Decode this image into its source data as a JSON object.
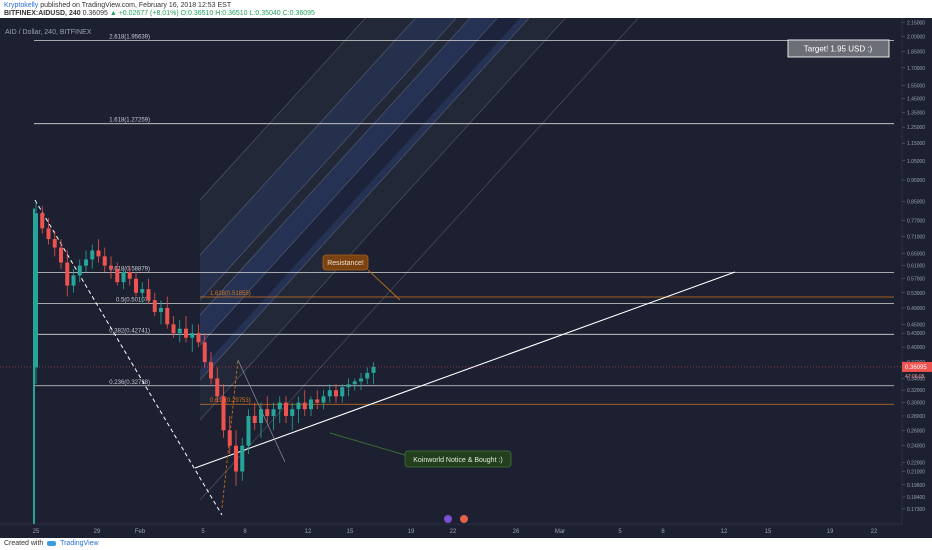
{
  "header": {
    "author": "Kryptokelly",
    "published": "published on TradingView.com, February 16, 2018 12:53 EST",
    "symbol": "BITFINEX:AIDUSD, 240",
    "last": "0.36095",
    "change": "▲ +0.02677 (+8.01%)",
    "o": "O:0.36510",
    "h": "H:0.36510",
    "l": "L:0.35040",
    "c": "C:0.36095"
  },
  "footer": {
    "created": "Created with",
    "brand": "TradingView"
  },
  "colors": {
    "background": "#1c2030",
    "up": "#26a69a",
    "down": "#ef5350",
    "fib_line": "#d8d8d8",
    "fib_orange": "#d2761c",
    "channel_blue": "#2c4f9c",
    "callout_orange": "#7a4211",
    "callout_green": "#233f1e"
  },
  "chart_data": {
    "type": "candlestick",
    "title": "AID / Dollar, 240, BITFINEX",
    "y_scale": "log",
    "ylim": [
      0.16,
      2.2
    ],
    "y_ticks": [
      "2.15000",
      "2.00000",
      "1.85000",
      "1.70000",
      "1.55000",
      "1.45000",
      "1.35000",
      "1.25000",
      "1.15000",
      "1.05000",
      "0.95000",
      "0.85000",
      "0.77000",
      "0.71000",
      "0.65000",
      "0.61000",
      "0.57000",
      "0.53000",
      "0.49000",
      "0.45000",
      "0.43000",
      "0.40000",
      "0.37000",
      "0.34000",
      "0.32000",
      "0.30000",
      "0.28000",
      "0.26000",
      "0.24000",
      "0.22000",
      "0.21000",
      "0.19600",
      "0.18400",
      "0.17300"
    ],
    "x_ticks": [
      "25",
      "29",
      "Feb",
      "5",
      "8",
      "12",
      "15",
      "19",
      "22",
      "26",
      "Mar",
      "5",
      "8",
      "12",
      "15",
      "19",
      "22"
    ],
    "last_price_label": "0.36095",
    "last_price": 0.36095,
    "time_label": "47:06:05",
    "fib_levels": [
      {
        "label": "2.618(1.95639)",
        "value": 1.95639
      },
      {
        "label": "1.618(1.27259)",
        "value": 1.27259
      },
      {
        "label": "0.618(0.58879)",
        "value": 0.58879
      },
      {
        "label": "0.5(0.50107)",
        "value": 0.50107
      },
      {
        "label": "0.382(0.42741)",
        "value": 0.42741
      },
      {
        "label": "0.236(0.32738)",
        "value": 0.32738
      }
    ],
    "fib_orange_levels": [
      {
        "label": "1.618(0.51855)",
        "value": 0.51855
      },
      {
        "label": "0.618(0.29753)",
        "value": 0.29753
      }
    ],
    "annotations": {
      "target": "Target! 1.95 USD :)",
      "resistance": "Resistance!",
      "notice": "Koinworld Notice & Bought :)"
    },
    "candles": [
      [
        0.36,
        0.85,
        0.33,
        0.8
      ],
      [
        0.8,
        0.83,
        0.72,
        0.74
      ],
      [
        0.74,
        0.78,
        0.68,
        0.7
      ],
      [
        0.7,
        0.73,
        0.64,
        0.67
      ],
      [
        0.67,
        0.7,
        0.6,
        0.62
      ],
      [
        0.62,
        0.66,
        0.52,
        0.55
      ],
      [
        0.55,
        0.6,
        0.53,
        0.58
      ],
      [
        0.58,
        0.63,
        0.56,
        0.61
      ],
      [
        0.61,
        0.66,
        0.59,
        0.63
      ],
      [
        0.63,
        0.68,
        0.6,
        0.66
      ],
      [
        0.66,
        0.7,
        0.62,
        0.64
      ],
      [
        0.64,
        0.67,
        0.59,
        0.61
      ],
      [
        0.61,
        0.64,
        0.57,
        0.6
      ],
      [
        0.6,
        0.62,
        0.55,
        0.56
      ],
      [
        0.56,
        0.6,
        0.54,
        0.59
      ],
      [
        0.59,
        0.61,
        0.55,
        0.57
      ],
      [
        0.57,
        0.59,
        0.52,
        0.53
      ],
      [
        0.53,
        0.56,
        0.5,
        0.54
      ],
      [
        0.54,
        0.57,
        0.5,
        0.51
      ],
      [
        0.51,
        0.53,
        0.47,
        0.48
      ],
      [
        0.48,
        0.51,
        0.45,
        0.49
      ],
      [
        0.49,
        0.52,
        0.44,
        0.45
      ],
      [
        0.45,
        0.47,
        0.42,
        0.43
      ],
      [
        0.43,
        0.46,
        0.41,
        0.44
      ],
      [
        0.44,
        0.47,
        0.41,
        0.42
      ],
      [
        0.42,
        0.45,
        0.39,
        0.43
      ],
      [
        0.43,
        0.45,
        0.4,
        0.41
      ],
      [
        0.41,
        0.43,
        0.36,
        0.37
      ],
      [
        0.37,
        0.39,
        0.33,
        0.34
      ],
      [
        0.34,
        0.36,
        0.3,
        0.31
      ],
      [
        0.31,
        0.33,
        0.25,
        0.26
      ],
      [
        0.26,
        0.28,
        0.23,
        0.24
      ],
      [
        0.24,
        0.26,
        0.195,
        0.21
      ],
      [
        0.21,
        0.25,
        0.2,
        0.24
      ],
      [
        0.24,
        0.29,
        0.23,
        0.28
      ],
      [
        0.28,
        0.3,
        0.26,
        0.27
      ],
      [
        0.27,
        0.3,
        0.25,
        0.29
      ],
      [
        0.29,
        0.31,
        0.27,
        0.28
      ],
      [
        0.28,
        0.3,
        0.26,
        0.29
      ],
      [
        0.29,
        0.31,
        0.27,
        0.3
      ],
      [
        0.3,
        0.31,
        0.27,
        0.28
      ],
      [
        0.28,
        0.3,
        0.26,
        0.29
      ],
      [
        0.29,
        0.31,
        0.27,
        0.3
      ],
      [
        0.3,
        0.32,
        0.28,
        0.29
      ],
      [
        0.29,
        0.31,
        0.28,
        0.305
      ],
      [
        0.305,
        0.32,
        0.29,
        0.3
      ],
      [
        0.3,
        0.32,
        0.29,
        0.31
      ],
      [
        0.31,
        0.33,
        0.3,
        0.32
      ],
      [
        0.32,
        0.33,
        0.3,
        0.31
      ],
      [
        0.31,
        0.33,
        0.3,
        0.325
      ],
      [
        0.325,
        0.34,
        0.31,
        0.33
      ],
      [
        0.33,
        0.34,
        0.32,
        0.335
      ],
      [
        0.335,
        0.35,
        0.32,
        0.34
      ],
      [
        0.34,
        0.36,
        0.33,
        0.35
      ],
      [
        0.35,
        0.37,
        0.33,
        0.361
      ]
    ]
  }
}
